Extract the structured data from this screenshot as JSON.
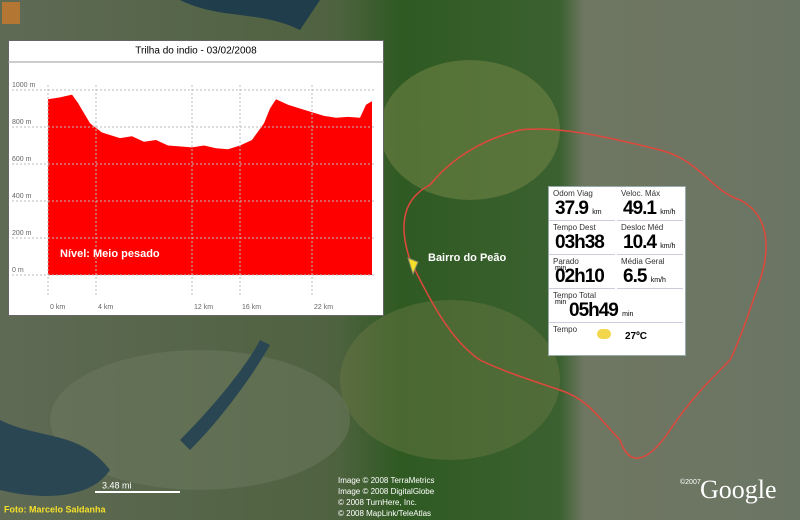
{
  "chart_data": {
    "type": "area",
    "title": "Trilha do indio - 03/02/2008",
    "annotation": "Nível: Meio pesado",
    "color": "#ff0000",
    "x": [
      0,
      1,
      2,
      2.5,
      3.5,
      4.5,
      6,
      7,
      8,
      9,
      10,
      12,
      13,
      14,
      15,
      16,
      17,
      18,
      18.5,
      19,
      20,
      21,
      22,
      23,
      24,
      25,
      26,
      26.5,
      27
    ],
    "values": [
      950,
      960,
      975,
      930,
      820,
      770,
      740,
      750,
      720,
      730,
      700,
      690,
      700,
      685,
      680,
      700,
      730,
      820,
      900,
      950,
      920,
      900,
      880,
      860,
      850,
      855,
      850,
      920,
      940
    ],
    "xlim": [
      0,
      27
    ],
    "ylim": [
      0,
      1000
    ],
    "xticks": [
      {
        "value": 0,
        "label": "0 km"
      },
      {
        "value": 4,
        "label": "4 km"
      },
      {
        "value": 12,
        "label": "12 km"
      },
      {
        "value": 16,
        "label": "16 km"
      },
      {
        "value": 22,
        "label": "22 km"
      }
    ],
    "yticks": [
      {
        "value": 0,
        "label": "0 m"
      },
      {
        "value": 200,
        "label": "200 m"
      },
      {
        "value": 400,
        "label": "400 m"
      },
      {
        "value": 600,
        "label": "600 m"
      },
      {
        "value": 800,
        "label": "800 m"
      },
      {
        "value": 1000,
        "label": "1000 m"
      }
    ],
    "grid": true
  },
  "stats": {
    "items": [
      {
        "label": "Odom Viag",
        "value": "37.9",
        "unit": "km"
      },
      {
        "label": "Veloc. Máx",
        "value": "49.1",
        "unit": "km/h"
      },
      {
        "label": "Tempo Dest",
        "value": "03h38",
        "unit": "min"
      },
      {
        "label": "Desloc Méd",
        "value": "10.4",
        "unit": "km/h"
      },
      {
        "label": "Parado",
        "value": "02h10",
        "unit": "min"
      },
      {
        "label": "Média Geral",
        "value": "6.5",
        "unit": "km/h"
      },
      {
        "label": "Tempo Total",
        "value": "05h49",
        "unit": "min"
      },
      {
        "label": "Tempo",
        "value": "27ºC"
      }
    ]
  },
  "map": {
    "place": "Bairro do Peão",
    "scale": "3.48 mi",
    "photo_credit": "Foto: Marcelo Saldanha",
    "credits": [
      "Image © 2008 TerraMetrics",
      "Image © 2008 DigitalGlobe",
      "© 2008 TurnHere, Inc.",
      "© 2008 MapLink/TeleAtlas"
    ],
    "copyright": "©2007",
    "brand": "Google"
  }
}
